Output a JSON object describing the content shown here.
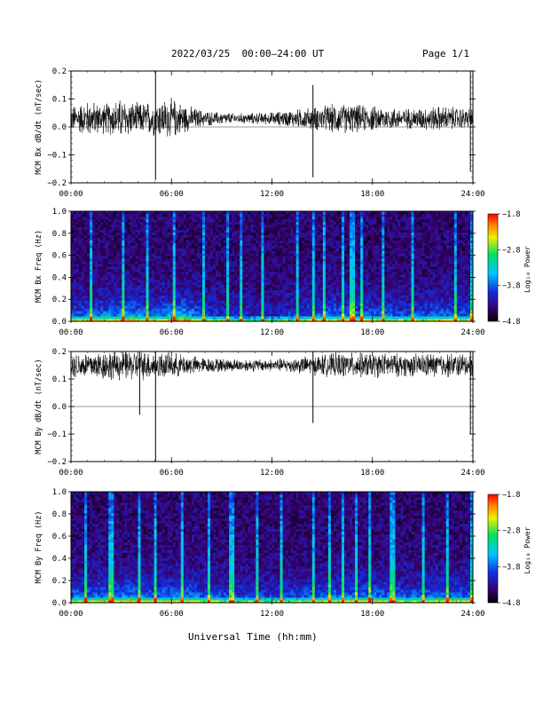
{
  "header": {
    "title": "2022/03/25  00:00–24:00 UT",
    "page": "Page 1/1"
  },
  "x_axis_label": "Universal Time (hh:mm)",
  "chart_data": [
    {
      "type": "line",
      "ylabel": "MCM Bx dB/dt (nT/sec)",
      "x_ticks": [
        "00:00",
        "06:00",
        "12:00",
        "18:00",
        "24:00"
      ],
      "xlim_hours": [
        0,
        24
      ],
      "y_ticks": [
        "0.2",
        "0.1",
        "0.0",
        "−0.1",
        "−0.2"
      ],
      "y_tick_values": [
        0.2,
        0.1,
        0.0,
        -0.1,
        -0.2
      ],
      "ylim": [
        -0.2,
        0.2
      ],
      "baseline": 0.03,
      "envelope": [
        {
          "h": 0,
          "amp": 0.05
        },
        {
          "h": 1,
          "amp": 0.07
        },
        {
          "h": 2,
          "amp": 0.06
        },
        {
          "h": 3,
          "amp": 0.08
        },
        {
          "h": 4,
          "amp": 0.06
        },
        {
          "h": 5,
          "amp": 0.07
        },
        {
          "h": 6,
          "amp": 0.08
        },
        {
          "h": 7,
          "amp": 0.05
        },
        {
          "h": 8,
          "amp": 0.03
        },
        {
          "h": 10,
          "amp": 0.02
        },
        {
          "h": 12,
          "amp": 0.025
        },
        {
          "h": 14,
          "amp": 0.04
        },
        {
          "h": 15,
          "amp": 0.05
        },
        {
          "h": 16,
          "amp": 0.06
        },
        {
          "h": 18,
          "amp": 0.05
        },
        {
          "h": 20,
          "amp": 0.04
        },
        {
          "h": 22,
          "amp": 0.05
        },
        {
          "h": 24,
          "amp": 0.04
        }
      ],
      "spikes": [
        {
          "h": 5.05,
          "hi": 0.2,
          "lo": -0.19
        },
        {
          "h": 14.45,
          "hi": 0.15,
          "lo": -0.18
        },
        {
          "h": 23.85,
          "hi": 0.2,
          "lo": -0.16
        }
      ]
    },
    {
      "type": "heatmap",
      "ylabel": "MCM Bx Freq (Hz)",
      "x_ticks": [
        "00:00",
        "06:00",
        "12:00",
        "18:00",
        "24:00"
      ],
      "y_ticks": [
        "1.0",
        "0.8",
        "0.6",
        "0.4",
        "0.2",
        "0.0"
      ],
      "ylim": [
        0,
        1.0
      ],
      "colorbar": {
        "label": "Log₁₀ Power",
        "ticks": [
          "−1.8",
          "−2.8",
          "−3.8",
          "−4.8"
        ],
        "range": [
          -4.8,
          -1.8
        ]
      },
      "activity": [
        {
          "h": 0,
          "a": 0.5
        },
        {
          "h": 2,
          "a": 0.6
        },
        {
          "h": 3.5,
          "a": 0.75
        },
        {
          "h": 5,
          "a": 0.55
        },
        {
          "h": 6.5,
          "a": 0.85
        },
        {
          "h": 8,
          "a": 0.45
        },
        {
          "h": 10,
          "a": 0.3
        },
        {
          "h": 12,
          "a": 0.3
        },
        {
          "h": 14,
          "a": 0.45
        },
        {
          "h": 16,
          "a": 0.6
        },
        {
          "h": 18,
          "a": 0.55
        },
        {
          "h": 20,
          "a": 0.45
        },
        {
          "h": 22,
          "a": 0.55
        },
        {
          "h": 24,
          "a": 0.5
        }
      ],
      "vertical_streaks_h": [
        1.2,
        3.1,
        4.6,
        6.2,
        7.9,
        9.3,
        10.1,
        11.4,
        13.5,
        14.45,
        15.1,
        16.3,
        16.8,
        17.3,
        18.7,
        20.4,
        22.9,
        23.85
      ]
    },
    {
      "type": "line",
      "ylabel": "MCM By dB/dt (nT/sec)",
      "x_ticks": [
        "00:00",
        "06:00",
        "12:00",
        "18:00",
        "24:00"
      ],
      "xlim_hours": [
        0,
        24
      ],
      "y_ticks": [
        "0.2",
        "0.1",
        "0.0",
        "−0.1",
        "−0.2"
      ],
      "y_tick_values": [
        0.2,
        0.1,
        0.0,
        -0.1,
        -0.2
      ],
      "ylim": [
        -0.2,
        0.2
      ],
      "baseline": 0.15,
      "envelope": [
        {
          "h": 0,
          "amp": 0.05
        },
        {
          "h": 2,
          "amp": 0.06
        },
        {
          "h": 4,
          "amp": 0.06
        },
        {
          "h": 6,
          "amp": 0.05
        },
        {
          "h": 8,
          "amp": 0.03
        },
        {
          "h": 10,
          "amp": 0.025
        },
        {
          "h": 12,
          "amp": 0.025
        },
        {
          "h": 14,
          "amp": 0.035
        },
        {
          "h": 16,
          "amp": 0.05
        },
        {
          "h": 18,
          "amp": 0.05
        },
        {
          "h": 20,
          "amp": 0.045
        },
        {
          "h": 22,
          "amp": 0.05
        },
        {
          "h": 24,
          "amp": 0.045
        }
      ],
      "spikes": [
        {
          "h": 4.1,
          "hi": 0.2,
          "lo": -0.03
        },
        {
          "h": 5.05,
          "hi": 0.2,
          "lo": -0.2
        },
        {
          "h": 14.45,
          "hi": 0.2,
          "lo": -0.06
        },
        {
          "h": 23.85,
          "hi": 0.2,
          "lo": -0.1
        }
      ]
    },
    {
      "type": "heatmap",
      "ylabel": "MCM By Freq (Hz)",
      "x_ticks": [
        "00:00",
        "06:00",
        "12:00",
        "18:00",
        "24:00"
      ],
      "y_ticks": [
        "1.0",
        "0.8",
        "0.6",
        "0.4",
        "0.2",
        "0.0"
      ],
      "ylim": [
        0,
        1.0
      ],
      "colorbar": {
        "label": "Log₁₀ Power",
        "ticks": [
          "−1.8",
          "−2.8",
          "−3.8",
          "−4.8"
        ],
        "range": [
          -4.8,
          -1.8
        ]
      },
      "activity": [
        {
          "h": 0,
          "a": 0.55
        },
        {
          "h": 2,
          "a": 0.6
        },
        {
          "h": 3.5,
          "a": 0.7
        },
        {
          "h": 5,
          "a": 0.55
        },
        {
          "h": 6.5,
          "a": 0.7
        },
        {
          "h": 8,
          "a": 0.5
        },
        {
          "h": 10,
          "a": 0.45
        },
        {
          "h": 12,
          "a": 0.4
        },
        {
          "h": 14,
          "a": 0.5
        },
        {
          "h": 16,
          "a": 0.6
        },
        {
          "h": 18,
          "a": 0.6
        },
        {
          "h": 20,
          "a": 0.5
        },
        {
          "h": 22,
          "a": 0.6
        },
        {
          "h": 24,
          "a": 0.55
        }
      ],
      "vertical_streaks_h": [
        0.9,
        2.4,
        4.1,
        5.05,
        6.7,
        8.2,
        9.6,
        11.1,
        12.6,
        14.45,
        15.4,
        16.3,
        17.1,
        17.8,
        19.2,
        21.0,
        22.5,
        23.85
      ]
    }
  ]
}
